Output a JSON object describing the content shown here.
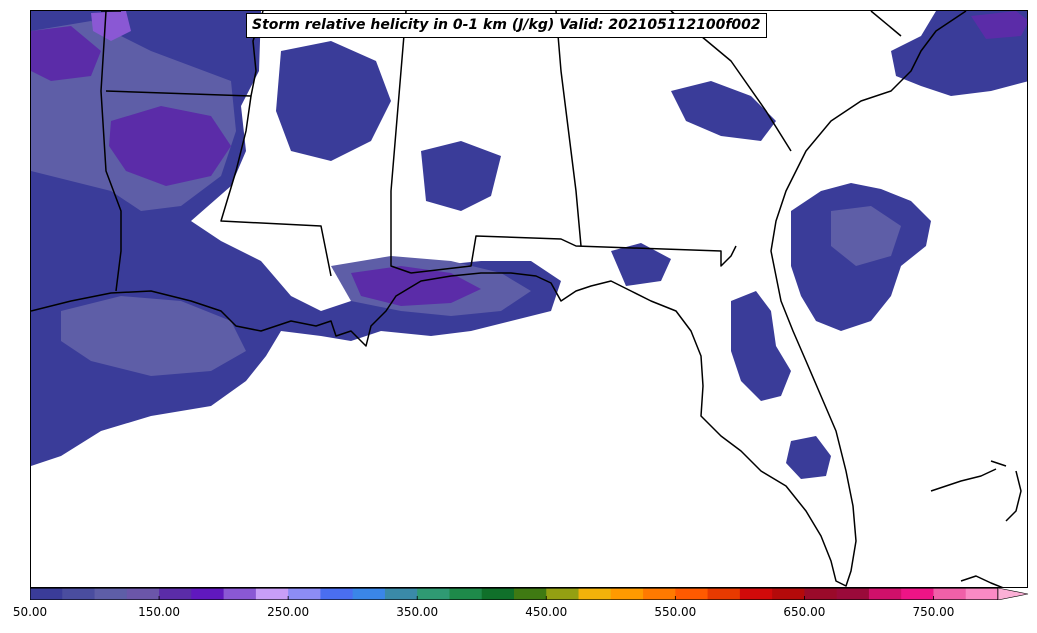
{
  "title": "Storm relative helicity in 0-1 km (J/kg) Valid: 202105112100f002",
  "colorbar": {
    "min": 50,
    "max": 830,
    "step": 25,
    "extend": "max",
    "colors": [
      "#3a3c99",
      "#4a4d9f",
      "#5e5ea7",
      "#6b56a9",
      "#5b2ca8",
      "#6018be",
      "#8a58d4",
      "#c89ef7",
      "#8c8cf5",
      "#4a6ef0",
      "#3a86e8",
      "#3a8aa8",
      "#2f9a73",
      "#1e8a4a",
      "#10702a",
      "#3f7a12",
      "#94a012",
      "#f2b20a",
      "#ff9a00",
      "#ff7a00",
      "#ff5a00",
      "#e83a00",
      "#d20a0a",
      "#b40a0a",
      "#9a0a2a",
      "#9a0a3a",
      "#d0106a",
      "#ee1486",
      "#f060a8",
      "#fa8ac4"
    ],
    "extend_color": "#fbb0d6",
    "tick_labels": [
      "50.00",
      "150.00",
      "250.00",
      "350.00",
      "450.00",
      "550.00",
      "650.00",
      "750.00"
    ]
  },
  "map": {
    "region": "Southeastern United States and Gulf of Mexico",
    "field_colors": [
      "#3a3c99",
      "#5e5ea7",
      "#5b2ca8",
      "#8a58d4"
    ],
    "boundary_color": "#000000"
  }
}
